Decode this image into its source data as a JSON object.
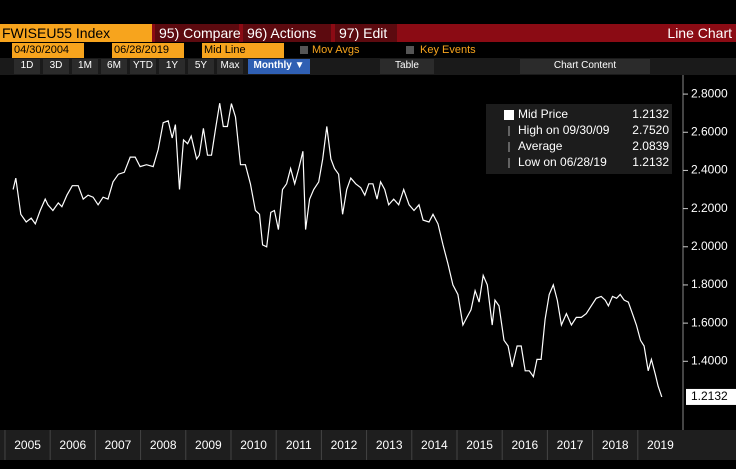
{
  "toolbar": {
    "security": "FWISEU55 Index",
    "compare": "95) Compare",
    "actions": "96) Actions",
    "edit": "97) Edit",
    "view": "Line Chart",
    "start_date": "04/30/2004",
    "end_date": "06/28/2019",
    "field": "Mid Line",
    "mov_avgs": "Mov Avgs",
    "key_events": "Key Events",
    "periods": [
      "1D",
      "3D",
      "1M",
      "6M",
      "YTD",
      "1Y",
      "5Y",
      "Max"
    ],
    "frequency": "Monthly ▼",
    "table": "Table",
    "chart_content": "Chart Content"
  },
  "chart_data": {
    "type": "line",
    "x": [
      2005.18,
      2005.24,
      2005.35,
      2005.47,
      2005.58,
      2005.67,
      2005.78,
      2005.89,
      2005.95,
      2006.06,
      2006.18,
      2006.26,
      2006.37,
      2006.49,
      2006.62,
      2006.73,
      2006.84,
      2006.95,
      2007.06,
      2007.17,
      2007.28,
      2007.39,
      2007.51,
      2007.64,
      2007.77,
      2007.88,
      2007.99,
      2008.13,
      2008.28,
      2008.39,
      2008.5,
      2008.61,
      2008.7,
      2008.77,
      2008.86,
      2008.95,
      2009.04,
      2009.12,
      2009.24,
      2009.3,
      2009.39,
      2009.48,
      2009.57,
      2009.66,
      2009.75,
      2009.83,
      2009.92,
      2010.01,
      2010.1,
      2010.21,
      2010.32,
      2010.43,
      2010.54,
      2010.63,
      2010.7,
      2010.79,
      2010.88,
      2010.96,
      2011.05,
      2011.14,
      2011.23,
      2011.32,
      2011.41,
      2011.5,
      2011.59,
      2011.65,
      2011.74,
      2011.83,
      2011.94,
      2012.03,
      2012.12,
      2012.21,
      2012.29,
      2012.38,
      2012.47,
      2012.56,
      2012.65,
      2012.76,
      2012.87,
      2012.96,
      2013.05,
      2013.14,
      2013.23,
      2013.31,
      2013.4,
      2013.49,
      2013.6,
      2013.71,
      2013.82,
      2013.94,
      2014.05,
      2014.16,
      2014.25,
      2014.38,
      2014.47,
      2014.58,
      2014.69,
      2014.8,
      2014.91,
      2015.02,
      2015.13,
      2015.22,
      2015.31,
      2015.4,
      2015.49,
      2015.58,
      2015.67,
      2015.78,
      2015.84,
      2015.93,
      2016.04,
      2016.13,
      2016.22,
      2016.33,
      2016.42,
      2016.51,
      2016.6,
      2016.69,
      2016.77,
      2016.86,
      2016.95,
      2017.04,
      2017.13,
      2017.22,
      2017.31,
      2017.42,
      2017.53,
      2017.64,
      2017.75,
      2017.86,
      2017.97,
      2018.08,
      2018.19,
      2018.28,
      2018.35,
      2018.44,
      2018.53,
      2018.61,
      2018.7,
      2018.79,
      2018.88,
      2018.97,
      2019.06,
      2019.14,
      2019.23,
      2019.3,
      2019.39,
      2019.45,
      2019.53
    ],
    "series": [
      {
        "name": "Mid Price",
        "color": "#ffffff",
        "values": [
          2.3,
          2.36,
          2.17,
          2.13,
          2.15,
          2.12,
          2.19,
          2.25,
          2.22,
          2.19,
          2.23,
          2.21,
          2.27,
          2.32,
          2.32,
          2.25,
          2.27,
          2.26,
          2.22,
          2.26,
          2.25,
          2.34,
          2.38,
          2.39,
          2.47,
          2.47,
          2.42,
          2.43,
          2.42,
          2.51,
          2.65,
          2.66,
          2.57,
          2.64,
          2.3,
          2.56,
          2.54,
          2.58,
          2.46,
          2.48,
          2.62,
          2.48,
          2.48,
          2.62,
          2.752,
          2.63,
          2.63,
          2.75,
          2.68,
          2.43,
          2.43,
          2.33,
          2.19,
          2.17,
          2.01,
          2.0,
          2.18,
          2.19,
          2.09,
          2.3,
          2.33,
          2.41,
          2.33,
          2.41,
          2.5,
          2.09,
          2.25,
          2.3,
          2.34,
          2.46,
          2.63,
          2.46,
          2.41,
          2.38,
          2.17,
          2.3,
          2.36,
          2.33,
          2.31,
          2.27,
          2.33,
          2.33,
          2.25,
          2.34,
          2.3,
          2.22,
          2.25,
          2.22,
          2.3,
          2.22,
          2.19,
          2.22,
          2.14,
          2.13,
          2.17,
          2.12,
          2.01,
          1.91,
          1.8,
          1.75,
          1.59,
          1.63,
          1.67,
          1.77,
          1.71,
          1.85,
          1.8,
          1.59,
          1.72,
          1.69,
          1.51,
          1.48,
          1.37,
          1.48,
          1.48,
          1.35,
          1.35,
          1.32,
          1.41,
          1.41,
          1.62,
          1.75,
          1.8,
          1.72,
          1.59,
          1.65,
          1.59,
          1.63,
          1.63,
          1.65,
          1.69,
          1.73,
          1.74,
          1.72,
          1.69,
          1.74,
          1.73,
          1.75,
          1.72,
          1.71,
          1.65,
          1.59,
          1.51,
          1.48,
          1.35,
          1.41,
          1.33,
          1.27,
          1.2132
        ]
      }
    ],
    "last_value": "1.2132",
    "stats": [
      {
        "label": "High on 09/30/09",
        "value": "2.7520"
      },
      {
        "label": "Average",
        "value": "2.0839"
      },
      {
        "label": "Low on 06/28/19",
        "value": "1.2132"
      }
    ],
    "xlim": [
      2004.89,
      2020
    ],
    "xticks": [
      2005,
      2006,
      2007,
      2008,
      2009,
      2010,
      2011,
      2012,
      2013,
      2014,
      2015,
      2016,
      2017,
      2018,
      2019
    ],
    "ylim": [
      1.04,
      2.9
    ],
    "yticks": [
      {
        "value": 1.4,
        "label": "1.4000"
      },
      {
        "value": 1.6,
        "label": "1.6000"
      },
      {
        "value": 1.8,
        "label": "1.8000"
      },
      {
        "value": 2.0,
        "label": "2.0000"
      },
      {
        "value": 2.2,
        "label": "2.2000"
      },
      {
        "value": 2.4,
        "label": "2.4000"
      },
      {
        "value": 2.6,
        "label": "2.6000"
      },
      {
        "value": 2.8,
        "label": "2.8000"
      }
    ]
  }
}
